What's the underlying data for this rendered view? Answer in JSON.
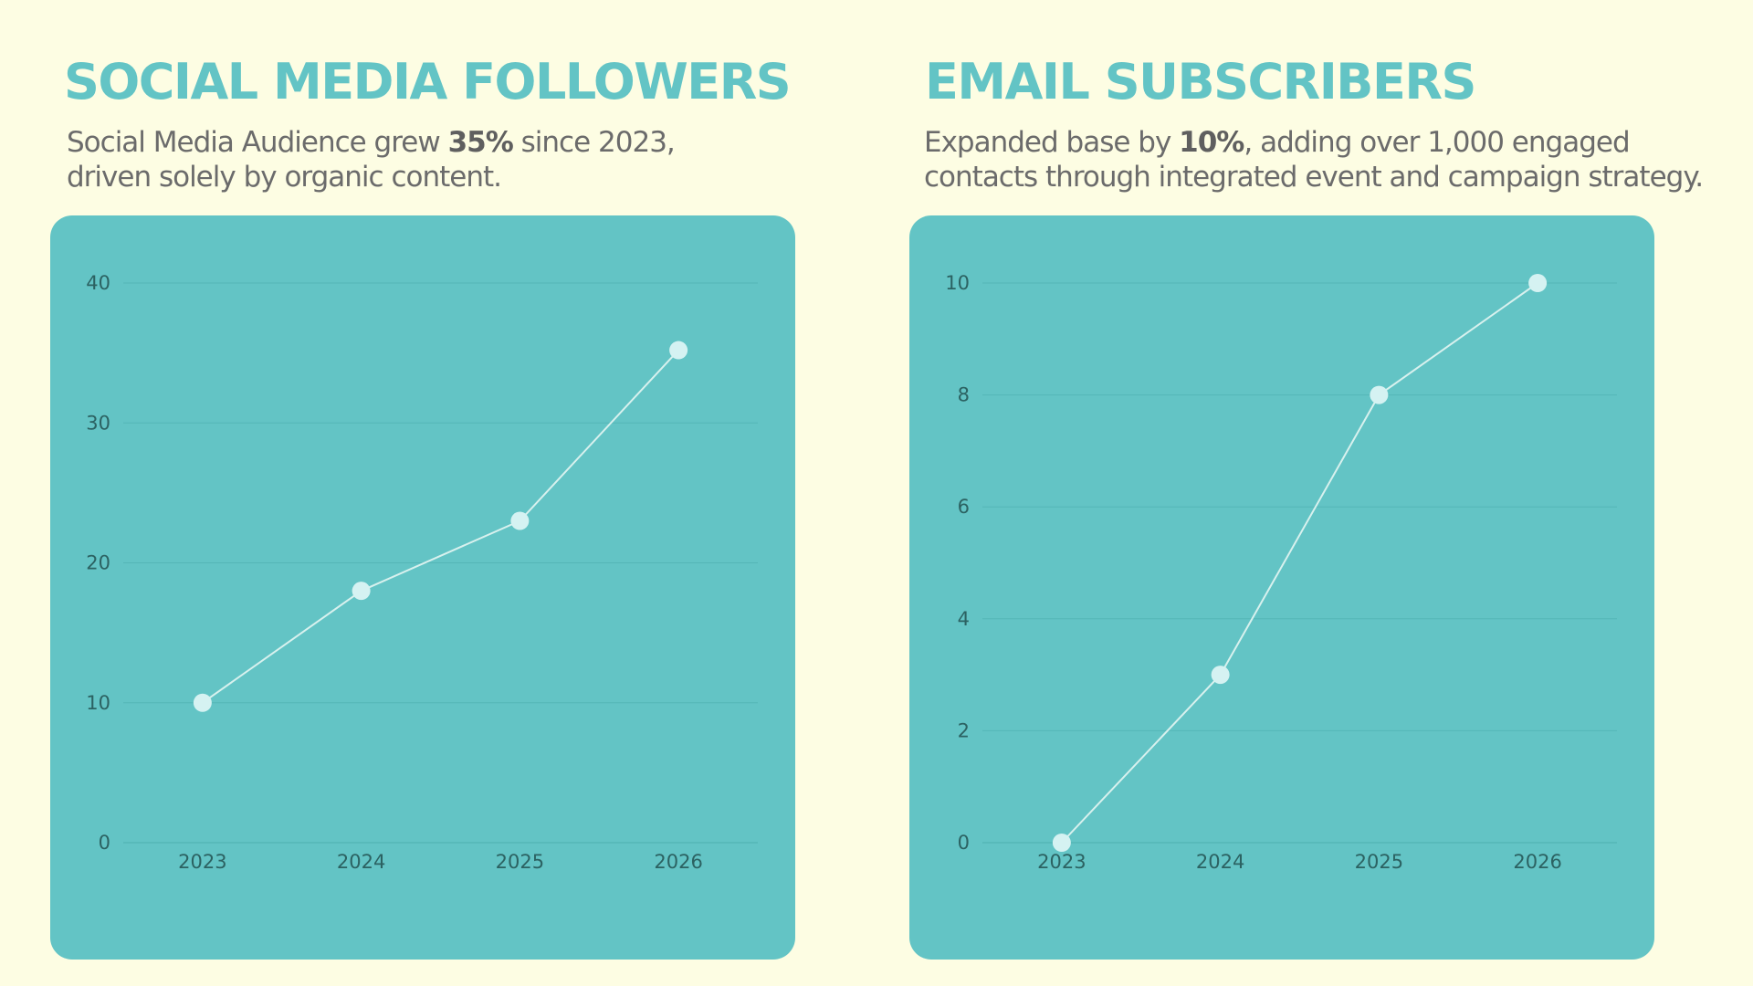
{
  "panels": [
    {
      "title": "SOCIAL MEDIA FOLLOWERS",
      "description": {
        "before": "Social Media Audience grew ",
        "highlight": "35%",
        "after": " since 2023, driven solely by organic content."
      }
    },
    {
      "title": "EMAIL SUBSCRIBERS",
      "description": {
        "before": "Expanded base by ",
        "highlight": "10%",
        "after": ", adding over 1,000 engaged contacts through integrated event and campaign strategy."
      }
    }
  ],
  "colors": {
    "background": "#fdfde3",
    "accent": "#63c4c5",
    "line": "#d8f1ee",
    "marker": "#d5f2f2",
    "gridline": "#55b6b7",
    "tick_text": "#2c6262",
    "body_text": "#6b6b6b"
  },
  "chart_data": [
    {
      "type": "line",
      "categories": [
        "2023",
        "2024",
        "2025",
        "2026"
      ],
      "values": [
        10,
        18,
        23,
        35.2
      ],
      "ylim": [
        0,
        40
      ],
      "yticks": [
        0,
        10,
        20,
        30,
        40
      ],
      "grid": true,
      "legend": "none",
      "title": "",
      "xlabel": "",
      "ylabel": ""
    },
    {
      "type": "line",
      "categories": [
        "2023",
        "2024",
        "2025",
        "2026"
      ],
      "values": [
        0,
        3,
        8,
        10
      ],
      "ylim": [
        0,
        10
      ],
      "yticks": [
        0,
        2,
        4,
        6,
        8,
        10
      ],
      "grid": true,
      "legend": "none",
      "title": "",
      "xlabel": "",
      "ylabel": ""
    }
  ]
}
